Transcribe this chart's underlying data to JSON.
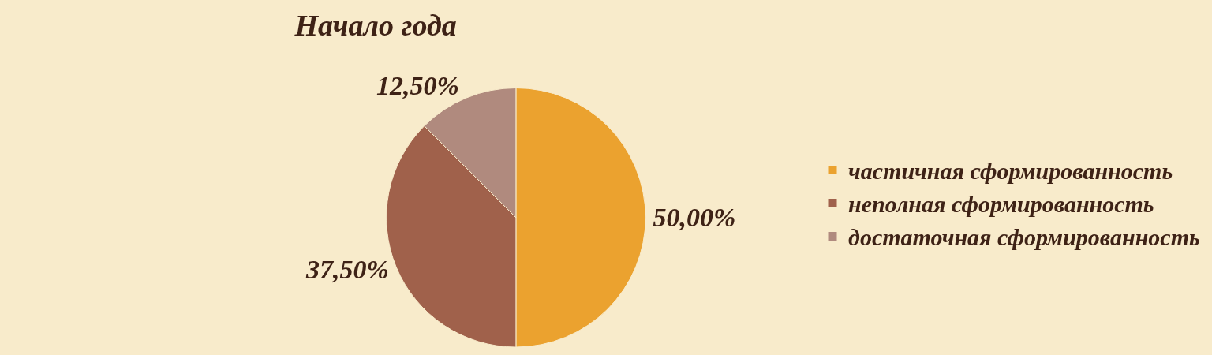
{
  "chart_data": {
    "type": "pie",
    "title": "Начало года",
    "categories": [
      "частичная сформированность",
      "неполная сформированность",
      "достаточная сформированность"
    ],
    "values": [
      50,
      37.5,
      12.5
    ],
    "colors": [
      "#eba22f",
      "#a0614b",
      "#b08a7e"
    ],
    "value_labels": [
      "50,00%",
      "37,50%",
      "12,50%"
    ],
    "legend": "right"
  }
}
